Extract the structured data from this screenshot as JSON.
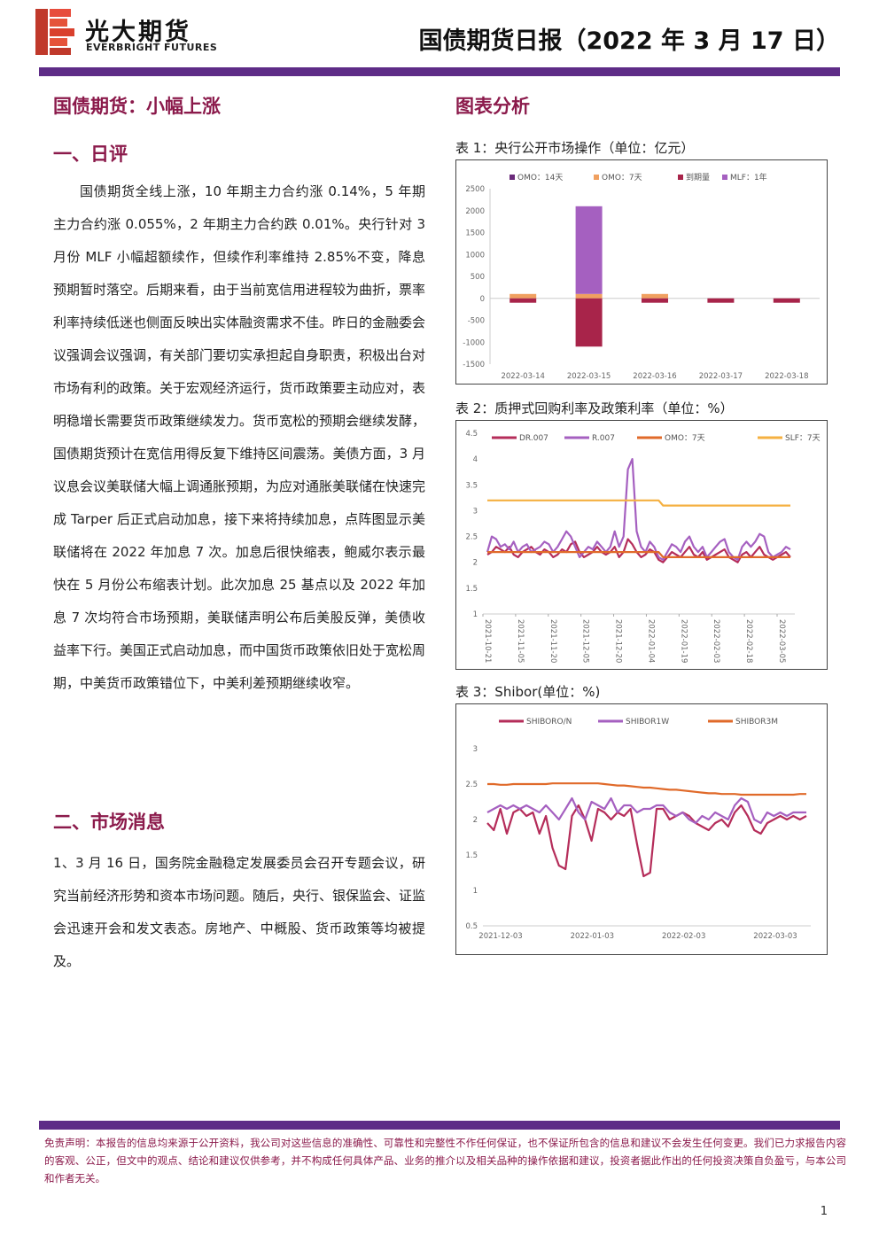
{
  "header": {
    "brand_cn": "光大期货",
    "brand_en": "EVERBRIGHT FUTURES",
    "report_title": "国债期货日报（2022 年 3 月 17 日）"
  },
  "left": {
    "main_title": "国债期货：小幅上涨",
    "daily_heading": "一、日评",
    "daily_text": "国债期货全线上涨，10 年期主力合约涨 0.14%，5 年期主力合约涨 0.055%，2 年期主力合约跌 0.01%。央行针对 3 月份 MLF 小幅超额续作，但续作利率维持 2.85%不变，降息预期暂时落空。后期来看，由于当前宽信用进程较为曲折，票率利率持续低迷也侧面反映出实体融资需求不佳。昨日的金融委会议强调会议强调，有关部门要切实承担起自身职责，积极出台对市场有利的政策。关于宏观经济运行，货币政策要主动应对，表明稳增长需要货币政策继续发力。货币宽松的预期会继续发酵，国债期货预计在宽信用得反复下维持区间震荡。美债方面，3 月议息会议美联储大幅上调通胀预期，为应对通胀美联储在快速完成 Tarper 后正式启动加息，接下来将持续加息，点阵图显示美联储将在 2022 年加息 7 次。加息后很快缩表，鲍威尔表示最快在 5 月份公布缩表计划。此次加息 25 基点以及 2022 年加息 7 次均符合市场预期，美联储声明公布后美股反弹，美债收益率下行。美国正式启动加息，而中国货币政策依旧处于宽松周期，中美货币政策错位下，中美利差预期继续收窄。",
    "news_heading": "二、市场消息",
    "news_text": "1、3 月 16 日，国务院金融稳定发展委员会召开专题会议，研究当前经济形势和资本市场问题。随后，央行、银保监会、证监会迅速开会和发文表态。房地产、中概股、货币政策等均被提及。"
  },
  "right": {
    "title": "图表分析",
    "chart1_caption": "表 1：央行公开市场操作（单位：亿元）",
    "chart2_caption": "表 2：质押式回购利率及政策利率（单位：%）",
    "chart3_caption": "表 3：Shibor(单位：%)"
  },
  "chart_data": [
    {
      "type": "bar",
      "categories": [
        "2022-03-14",
        "2022-03-15",
        "2022-03-16",
        "2022-03-17",
        "2022-03-18"
      ],
      "ylim": [
        -1500,
        2500
      ],
      "yticks": [
        -1500,
        -1000,
        -500,
        0,
        500,
        1000,
        1500,
        2000,
        2500
      ],
      "series": [
        {
          "name": "OMO：14天",
          "color": "#6a2a7a",
          "values": [
            0,
            0,
            0,
            0,
            0
          ]
        },
        {
          "name": "OMO：7天",
          "color": "#f0a060",
          "values": [
            100,
            100,
            100,
            0,
            0
          ]
        },
        {
          "name": "到期量",
          "color": "#a8244a",
          "values": [
            -100,
            -1100,
            -100,
            -100,
            -100
          ]
        },
        {
          "name": "MLF：1年",
          "color": "#a560c0",
          "values": [
            0,
            2000,
            0,
            0,
            0
          ]
        }
      ]
    },
    {
      "type": "line",
      "x_ticks": [
        "2021-10-21",
        "2021-11-05",
        "2021-11-20",
        "2021-12-05",
        "2021-12-20",
        "2022-01-04",
        "2022-01-19",
        "2022-02-03",
        "2022-02-18",
        "2022-03-05"
      ],
      "ylim": [
        1,
        4.5
      ],
      "yticks": [
        1,
        1.5,
        2,
        2.5,
        3,
        3.5,
        4,
        4.5
      ],
      "series": [
        {
          "name": "DR.007",
          "color": "#b52d5a",
          "values": [
            2.15,
            2.2,
            2.3,
            2.25,
            2.2,
            2.3,
            2.15,
            2.1,
            2.2,
            2.25,
            2.3,
            2.2,
            2.15,
            2.25,
            2.2,
            2.1,
            2.15,
            2.25,
            2.2,
            2.35,
            2.4,
            2.2,
            2.1,
            2.15,
            2.2,
            2.3,
            2.2,
            2.15,
            2.2,
            2.3,
            2.1,
            2.2,
            2.45,
            2.35,
            2.2,
            2.1,
            2.15,
            2.25,
            2.2,
            2.05,
            2.0,
            2.1,
            2.2,
            2.15,
            2.1,
            2.2,
            2.3,
            2.15,
            2.1,
            2.2,
            2.05,
            2.1,
            2.15,
            2.2,
            2.25,
            2.1,
            2.05,
            2.0,
            2.15,
            2.2,
            2.1,
            2.2,
            2.3,
            2.15,
            2.1,
            2.05,
            2.1,
            2.15,
            2.2,
            2.1
          ]
        },
        {
          "name": "R.007",
          "color": "#a560c0",
          "values": [
            2.2,
            2.5,
            2.45,
            2.3,
            2.35,
            2.25,
            2.4,
            2.2,
            2.3,
            2.35,
            2.2,
            2.25,
            2.3,
            2.4,
            2.35,
            2.2,
            2.3,
            2.45,
            2.6,
            2.5,
            2.3,
            2.1,
            2.2,
            2.3,
            2.25,
            2.4,
            2.3,
            2.2,
            2.3,
            2.6,
            2.3,
            2.5,
            3.8,
            4.0,
            2.6,
            2.3,
            2.2,
            2.4,
            2.3,
            2.1,
            2.05,
            2.2,
            2.35,
            2.3,
            2.2,
            2.4,
            2.5,
            2.3,
            2.2,
            2.3,
            2.1,
            2.2,
            2.3,
            2.4,
            2.45,
            2.2,
            2.1,
            2.05,
            2.3,
            2.4,
            2.3,
            2.4,
            2.55,
            2.5,
            2.2,
            2.1,
            2.15,
            2.2,
            2.3,
            2.25
          ]
        },
        {
          "name": "OMO：7天",
          "color": "#e06a2a",
          "values": [
            2.2,
            2.2,
            2.2,
            2.2,
            2.2,
            2.2,
            2.2,
            2.2,
            2.2,
            2.2,
            2.2,
            2.2,
            2.2,
            2.2,
            2.2,
            2.2,
            2.2,
            2.2,
            2.2,
            2.2,
            2.2,
            2.2,
            2.2,
            2.2,
            2.2,
            2.2,
            2.2,
            2.2,
            2.2,
            2.2,
            2.2,
            2.2,
            2.2,
            2.2,
            2.2,
            2.2,
            2.2,
            2.2,
            2.2,
            2.2,
            2.1,
            2.1,
            2.1,
            2.1,
            2.1,
            2.1,
            2.1,
            2.1,
            2.1,
            2.1,
            2.1,
            2.1,
            2.1,
            2.1,
            2.1,
            2.1,
            2.1,
            2.1,
            2.1,
            2.1,
            2.1,
            2.1,
            2.1,
            2.1,
            2.1,
            2.1,
            2.1,
            2.1,
            2.1,
            2.1
          ]
        },
        {
          "name": "SLF：7天",
          "color": "#f5b041",
          "values": [
            3.2,
            3.2,
            3.2,
            3.2,
            3.2,
            3.2,
            3.2,
            3.2,
            3.2,
            3.2,
            3.2,
            3.2,
            3.2,
            3.2,
            3.2,
            3.2,
            3.2,
            3.2,
            3.2,
            3.2,
            3.2,
            3.2,
            3.2,
            3.2,
            3.2,
            3.2,
            3.2,
            3.2,
            3.2,
            3.2,
            3.2,
            3.2,
            3.2,
            3.2,
            3.2,
            3.2,
            3.2,
            3.2,
            3.2,
            3.2,
            3.1,
            3.1,
            3.1,
            3.1,
            3.1,
            3.1,
            3.1,
            3.1,
            3.1,
            3.1,
            3.1,
            3.1,
            3.1,
            3.1,
            3.1,
            3.1,
            3.1,
            3.1,
            3.1,
            3.1,
            3.1,
            3.1,
            3.1,
            3.1,
            3.1,
            3.1,
            3.1,
            3.1,
            3.1,
            3.1
          ]
        }
      ]
    },
    {
      "type": "line",
      "x_ticks": [
        "2021-12-03",
        "2022-01-03",
        "2022-02-03",
        "2022-03-03"
      ],
      "ylim": [
        0.5,
        3
      ],
      "yticks": [
        0.5,
        1,
        1.5,
        2,
        2.5,
        3
      ],
      "series": [
        {
          "name": "SHIBORO/N",
          "color": "#b52d5a",
          "values": [
            1.95,
            1.85,
            2.15,
            1.8,
            2.1,
            2.15,
            2.05,
            2.1,
            1.8,
            2.05,
            1.6,
            1.35,
            1.3,
            2.05,
            2.2,
            2.0,
            1.7,
            2.15,
            2.1,
            2.0,
            2.1,
            2.05,
            2.15,
            1.65,
            1.2,
            1.25,
            2.15,
            2.15,
            2.0,
            2.05,
            2.1,
            2.05,
            1.95,
            1.9,
            1.85,
            1.95,
            2.0,
            1.9,
            2.1,
            2.2,
            2.05,
            1.85,
            1.8,
            1.95,
            2.0,
            2.05,
            2.0,
            2.05,
            2.0,
            2.05
          ]
        },
        {
          "name": "SHIBOR1W",
          "color": "#a560c0",
          "values": [
            2.1,
            2.15,
            2.2,
            2.15,
            2.2,
            2.15,
            2.2,
            2.15,
            2.1,
            2.2,
            2.1,
            2.0,
            2.15,
            2.3,
            2.1,
            2.0,
            2.25,
            2.2,
            2.15,
            2.3,
            2.1,
            2.2,
            2.2,
            2.1,
            2.15,
            2.15,
            2.2,
            2.2,
            2.1,
            2.05,
            2.1,
            2.0,
            1.95,
            2.05,
            2.0,
            2.1,
            2.05,
            2.0,
            2.2,
            2.3,
            2.25,
            2.0,
            1.95,
            2.1,
            2.05,
            2.1,
            2.05,
            2.1,
            2.1,
            2.1
          ]
        },
        {
          "name": "SHIBOR3M",
          "color": "#e06a2a",
          "values": [
            2.5,
            2.5,
            2.49,
            2.49,
            2.5,
            2.5,
            2.5,
            2.5,
            2.5,
            2.5,
            2.51,
            2.51,
            2.51,
            2.51,
            2.51,
            2.51,
            2.51,
            2.51,
            2.5,
            2.49,
            2.48,
            2.48,
            2.47,
            2.46,
            2.45,
            2.45,
            2.44,
            2.43,
            2.42,
            2.42,
            2.41,
            2.4,
            2.39,
            2.38,
            2.37,
            2.37,
            2.36,
            2.36,
            2.36,
            2.35,
            2.35,
            2.35,
            2.35,
            2.35,
            2.35,
            2.35,
            2.35,
            2.35,
            2.36,
            2.36
          ]
        }
      ]
    }
  ],
  "footer": {
    "disclaimer": "免责声明：本报告的信息均来源于公开资料，我公司对这些信息的准确性、可靠性和完整性不作任何保证，也不保证所包含的信息和建议不会发生任何变更。我们已力求报告内容的客观、公正，但文中的观点、结论和建议仅供参考，并不构成任何具体产品、业务的推介以及相关品种的操作依据和建议，投资者据此作出的任何投资决策自负盈亏，与本公司和作者无关。",
    "page_number": "1"
  }
}
